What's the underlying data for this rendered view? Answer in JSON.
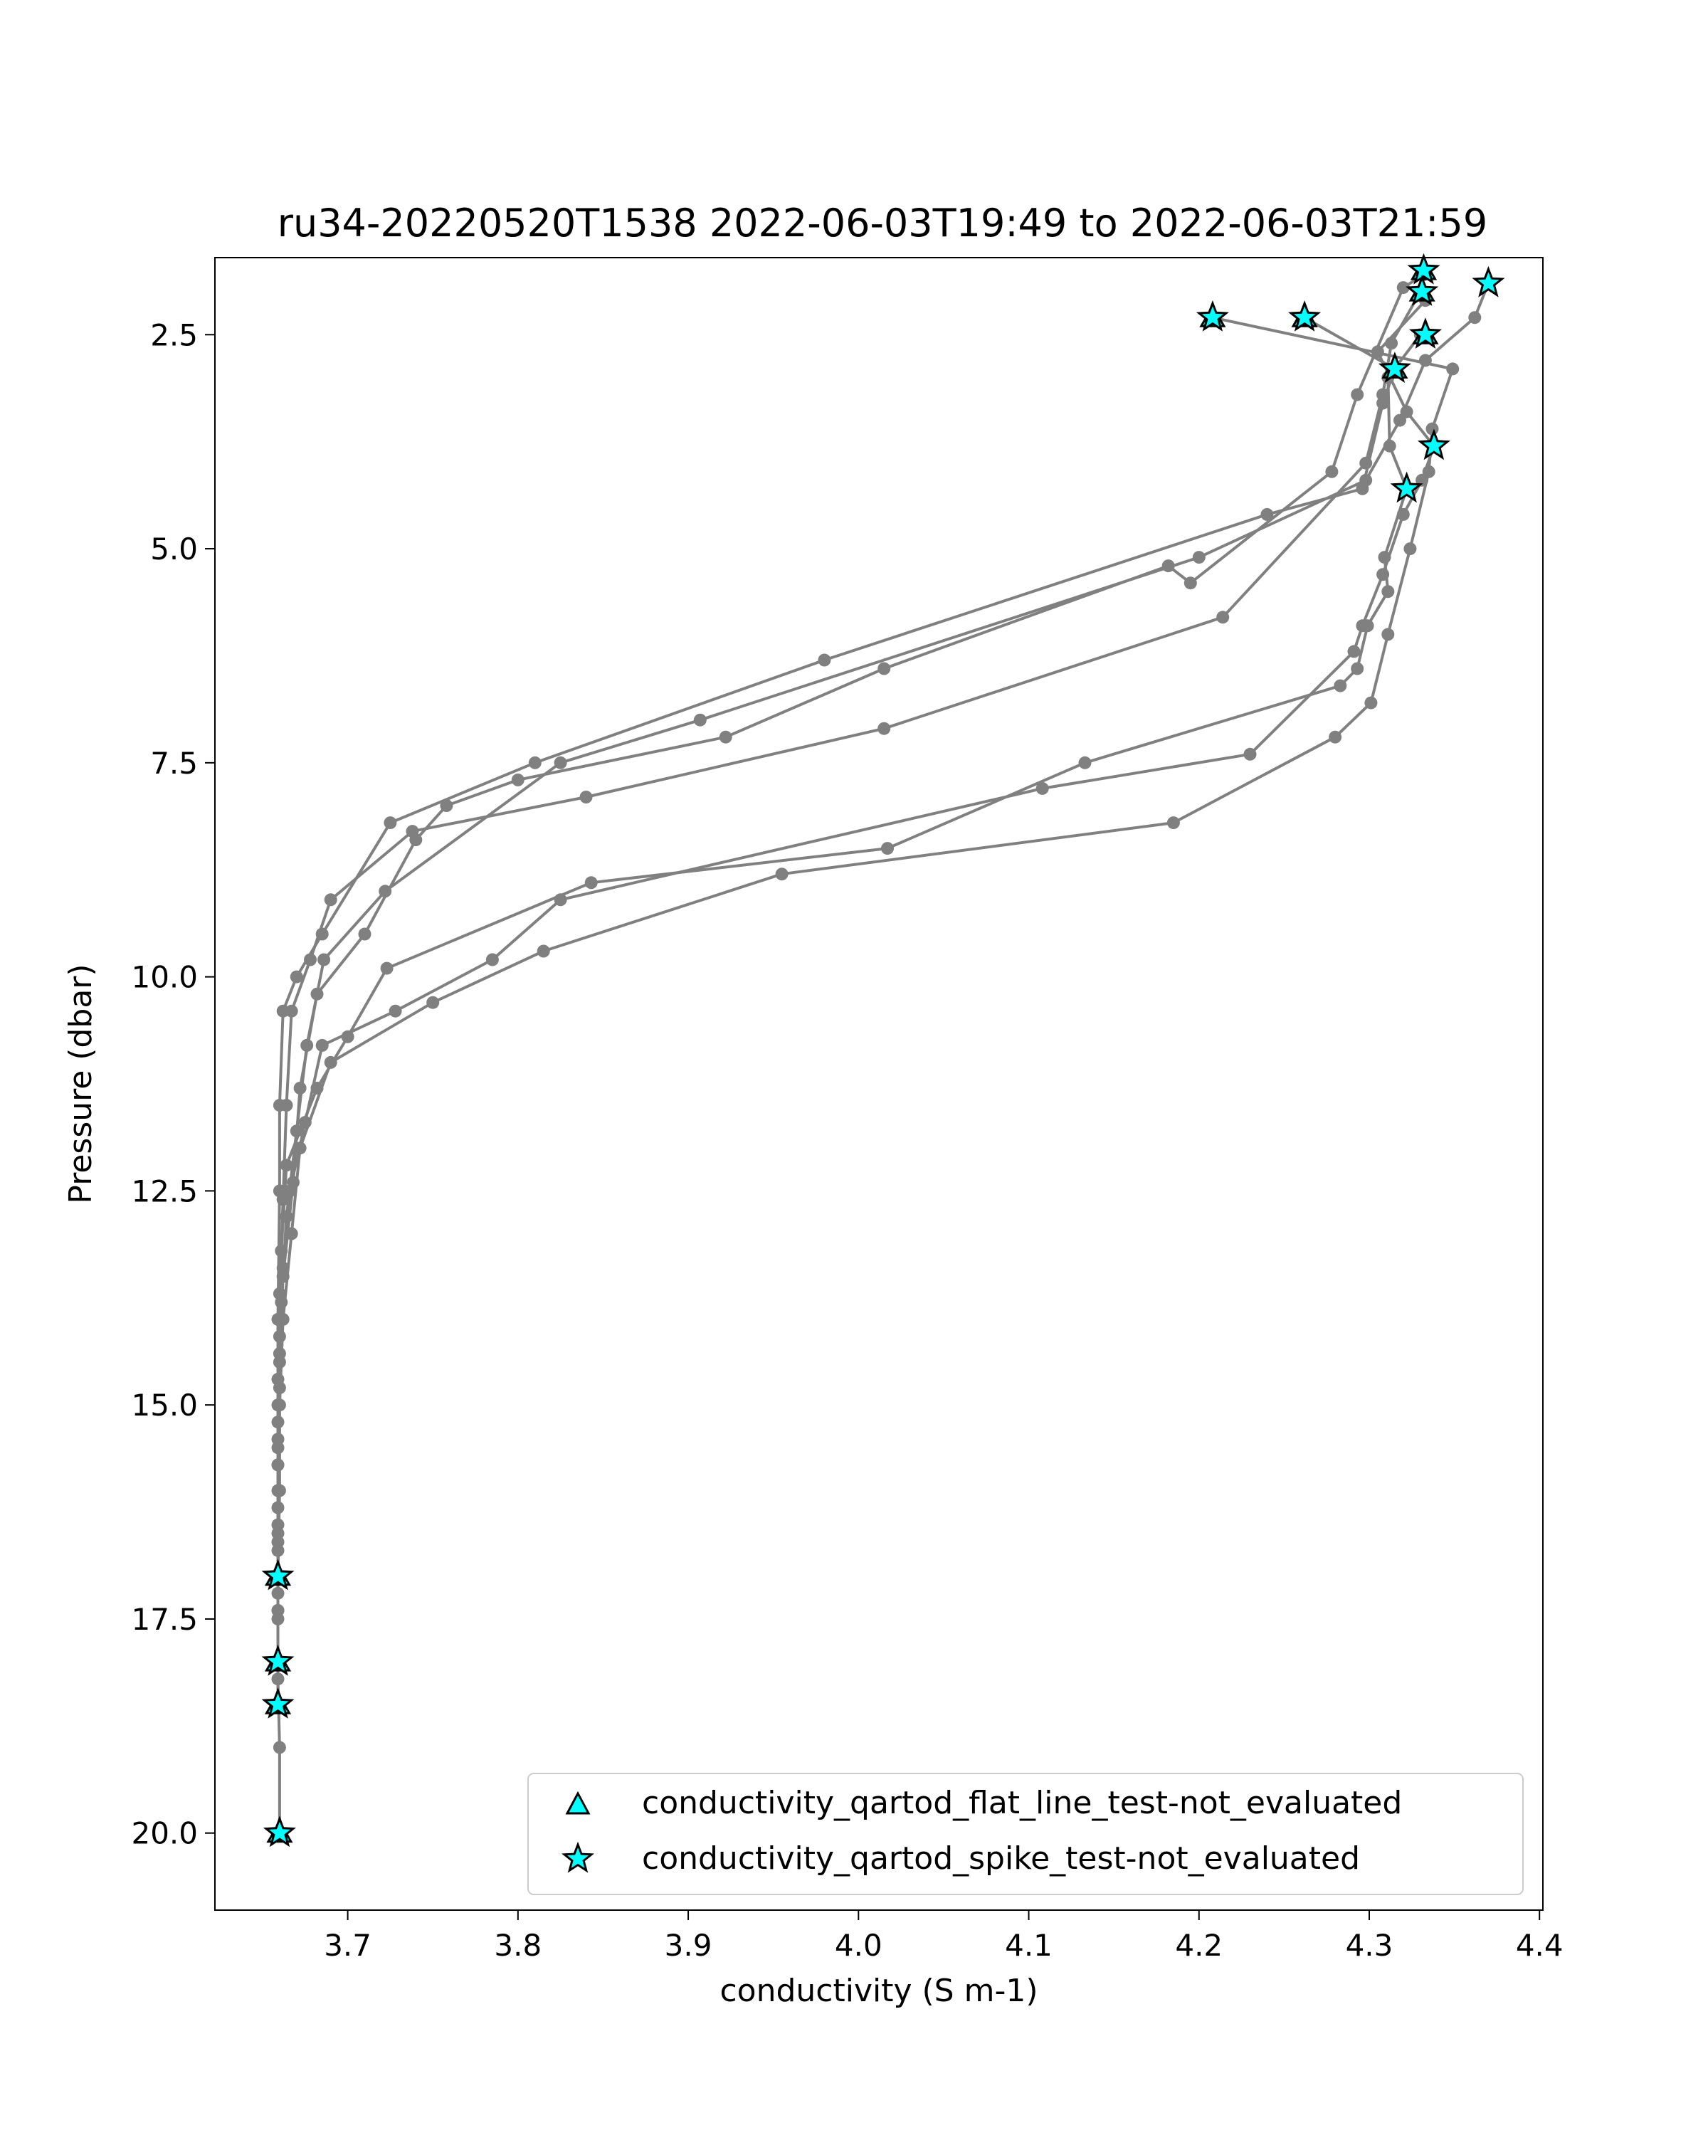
{
  "chart_data": {
    "type": "line",
    "title": "ru34-20220520T1538 2022-06-03T19:49 to 2022-06-03T21:59",
    "xlabel": "conductivity (S m-1)",
    "ylabel": "Pressure (dbar)",
    "xlim": [
      3.622,
      4.402
    ],
    "ylim": [
      20.9,
      1.6
    ],
    "y_inverted": true,
    "grid": false,
    "x_ticks": [
      "3.7",
      "3.8",
      "3.9",
      "4.0",
      "4.1",
      "4.2",
      "4.3",
      "4.4"
    ],
    "x_tick_values": [
      3.7,
      3.8,
      3.9,
      4.0,
      4.1,
      4.2,
      4.3,
      4.4
    ],
    "y_ticks": [
      "2.5",
      "5.0",
      "7.5",
      "10.0",
      "12.5",
      "15.0",
      "17.5",
      "20.0"
    ],
    "y_tick_values": [
      2.5,
      5.0,
      7.5,
      10.0,
      12.5,
      15.0,
      17.5,
      20.0
    ],
    "line_color": "#808080",
    "marker_fill": "#00ffff",
    "marker_edge": "#000000",
    "legend": {
      "placement": "lower-right",
      "entries": [
        {
          "label": "conductivity_qartod_flat_line_test-not_evaluated",
          "marker": "triangle"
        },
        {
          "label": "conductivity_qartod_spike_test-not_evaluated",
          "marker": "star"
        }
      ]
    },
    "series": [
      {
        "points": [
          [
            4.262,
            2.3
          ],
          [
            4.315,
            2.9
          ],
          [
            4.308,
            3.3
          ],
          [
            4.296,
            4.3
          ],
          [
            4.24,
            4.6
          ],
          [
            3.98,
            6.3
          ],
          [
            3.81,
            7.5
          ],
          [
            3.725,
            8.2
          ],
          [
            3.685,
            9.5
          ],
          [
            3.67,
            10.0
          ],
          [
            3.662,
            10.4
          ],
          [
            3.66,
            11.5
          ],
          [
            3.66,
            12.5
          ],
          [
            3.659,
            14.0
          ],
          [
            3.659,
            15.0
          ],
          [
            3.659,
            16.0
          ],
          [
            3.659,
            17.0
          ],
          [
            3.659,
            18.0
          ]
        ]
      },
      {
        "points": [
          [
            4.208,
            2.3
          ],
          [
            4.349,
            2.9
          ],
          [
            4.337,
            3.6
          ],
          [
            4.335,
            4.1
          ],
          [
            4.324,
            5.0
          ],
          [
            4.311,
            6.0
          ],
          [
            4.301,
            6.8
          ],
          [
            4.28,
            7.2
          ],
          [
            4.185,
            8.2
          ],
          [
            3.955,
            8.8
          ],
          [
            3.815,
            9.7
          ],
          [
            3.75,
            10.3
          ],
          [
            3.69,
            11.0
          ],
          [
            3.672,
            12.0
          ],
          [
            3.667,
            13.0
          ],
          [
            3.662,
            14.0
          ],
          [
            3.66,
            15.0
          ],
          [
            3.66,
            16.0
          ],
          [
            3.659,
            17.0
          ],
          [
            3.659,
            18.0
          ],
          [
            3.659,
            18.5
          ]
        ]
      },
      {
        "points": [
          [
            4.37,
            1.9
          ],
          [
            4.362,
            2.3
          ],
          [
            4.333,
            2.8
          ],
          [
            4.318,
            3.5
          ],
          [
            4.298,
            4.2
          ],
          [
            4.2,
            5.1
          ],
          [
            3.907,
            7.0
          ],
          [
            3.825,
            7.5
          ],
          [
            3.722,
            9.0
          ],
          [
            3.686,
            9.8
          ],
          [
            3.676,
            10.8
          ],
          [
            3.67,
            11.8
          ],
          [
            3.664,
            12.8
          ],
          [
            3.661,
            13.8
          ],
          [
            3.66,
            14.8
          ],
          [
            3.659,
            15.7
          ],
          [
            3.659,
            16.6
          ],
          [
            3.659,
            17.4
          ],
          [
            3.659,
            18.2
          ],
          [
            3.66,
            19.0
          ],
          [
            3.66,
            20.0
          ]
        ]
      },
      {
        "points": [
          [
            4.332,
            1.8
          ],
          [
            4.32,
            1.95
          ],
          [
            4.293,
            3.2
          ],
          [
            4.278,
            4.1
          ],
          [
            4.195,
            5.4
          ],
          [
            4.182,
            5.2
          ],
          [
            4.015,
            6.4
          ],
          [
            3.922,
            7.2
          ],
          [
            3.8,
            7.7
          ],
          [
            3.758,
            8.0
          ],
          [
            3.74,
            8.4
          ],
          [
            3.71,
            9.5
          ],
          [
            3.682,
            10.2
          ],
          [
            3.672,
            11.3
          ],
          [
            3.668,
            12.4
          ],
          [
            3.662,
            13.5
          ],
          [
            3.66,
            14.5
          ],
          [
            3.659,
            15.5
          ],
          [
            3.659,
            16.5
          ],
          [
            3.659,
            17.5
          ],
          [
            3.659,
            18.0
          ]
        ]
      },
      {
        "points": [
          [
            4.33,
            2.0
          ],
          [
            4.313,
            2.6
          ],
          [
            4.308,
            3.2
          ],
          [
            4.298,
            4.0
          ],
          [
            4.214,
            5.8
          ],
          [
            4.015,
            7.1
          ],
          [
            3.84,
            7.9
          ],
          [
            3.738,
            8.3
          ],
          [
            3.69,
            9.1
          ],
          [
            3.678,
            9.8
          ],
          [
            3.667,
            10.4
          ],
          [
            3.664,
            11.5
          ],
          [
            3.662,
            12.6
          ],
          [
            3.66,
            13.7
          ],
          [
            3.659,
            14.7
          ],
          [
            3.659,
            15.7
          ],
          [
            3.659,
            16.7
          ],
          [
            3.659,
            17.2
          ]
        ]
      },
      {
        "points": [
          [
            4.33,
            2.5
          ],
          [
            4.311,
            3.0
          ],
          [
            4.312,
            3.8
          ],
          [
            4.322,
            4.3
          ],
          [
            4.309,
            5.1
          ],
          [
            4.311,
            5.5
          ],
          [
            4.299,
            5.9
          ],
          [
            4.293,
            6.4
          ],
          [
            4.283,
            6.6
          ],
          [
            4.133,
            7.5
          ],
          [
            4.017,
            8.5
          ],
          [
            3.843,
            8.9
          ],
          [
            3.723,
            9.9
          ],
          [
            3.7,
            10.7
          ],
          [
            3.682,
            11.3
          ],
          [
            3.664,
            12.2
          ],
          [
            3.661,
            13.2
          ],
          [
            3.66,
            14.2
          ],
          [
            3.659,
            15.2
          ],
          [
            3.659,
            16.2
          ],
          [
            3.659,
            17.0
          ]
        ]
      },
      {
        "points": [
          [
            4.333,
            2.1
          ],
          [
            4.305,
            2.7
          ],
          [
            4.322,
            3.4
          ],
          [
            4.338,
            3.8
          ],
          [
            4.331,
            4.2
          ],
          [
            4.32,
            4.6
          ],
          [
            4.308,
            5.3
          ],
          [
            4.296,
            5.9
          ],
          [
            4.291,
            6.2
          ],
          [
            4.23,
            7.4
          ],
          [
            4.108,
            7.8
          ],
          [
            3.825,
            9.1
          ],
          [
            3.785,
            9.8
          ],
          [
            3.728,
            10.4
          ],
          [
            3.685,
            10.8
          ],
          [
            3.675,
            11.7
          ],
          [
            3.666,
            12.5
          ],
          [
            3.662,
            13.4
          ],
          [
            3.66,
            14.4
          ],
          [
            3.659,
            15.4
          ],
          [
            3.659,
            16.4
          ],
          [
            3.659,
            17.4
          ],
          [
            3.659,
            18.5
          ]
        ]
      }
    ],
    "spike_markers": [
      [
        4.332,
        1.75
      ],
      [
        4.37,
        1.9
      ],
      [
        4.331,
        2.0
      ],
      [
        4.208,
        2.3
      ],
      [
        4.262,
        2.3
      ],
      [
        4.333,
        2.5
      ],
      [
        4.315,
        2.9
      ],
      [
        4.338,
        3.8
      ],
      [
        4.322,
        4.3
      ],
      [
        3.659,
        17.0
      ],
      [
        3.659,
        18.0
      ],
      [
        3.659,
        18.5
      ],
      [
        3.66,
        20.0
      ]
    ],
    "flat_line_markers": [
      [
        4.332,
        1.75
      ],
      [
        4.331,
        2.0
      ],
      [
        4.208,
        2.3
      ],
      [
        4.262,
        2.3
      ],
      [
        4.333,
        2.5
      ],
      [
        4.315,
        2.9
      ],
      [
        3.659,
        17.0
      ],
      [
        3.659,
        18.0
      ],
      [
        3.659,
        18.5
      ],
      [
        3.66,
        20.0
      ]
    ]
  }
}
